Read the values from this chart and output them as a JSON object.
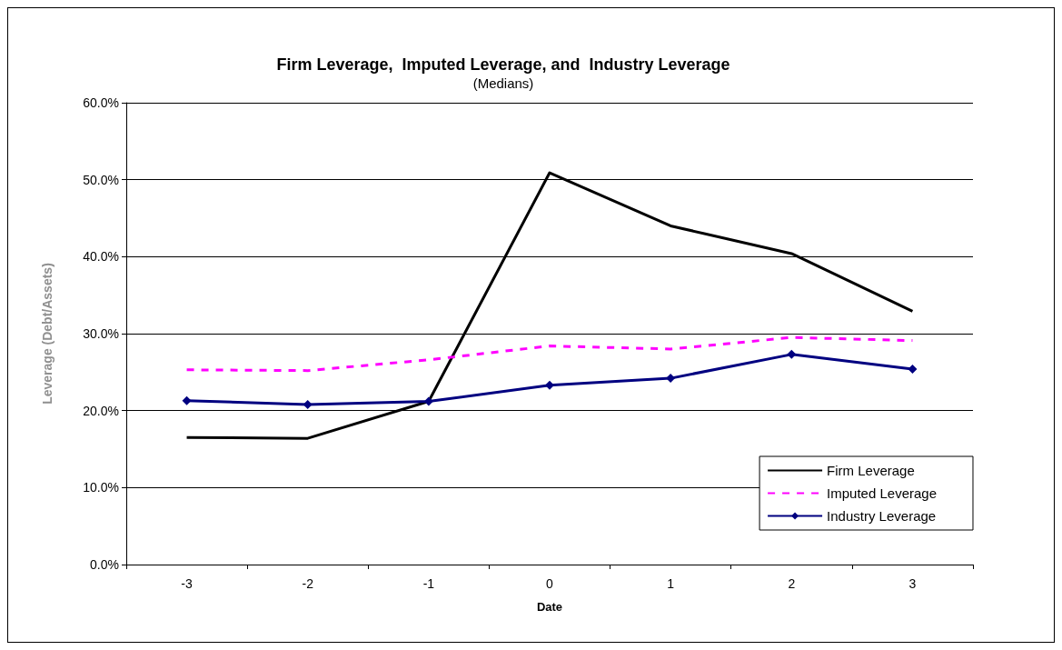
{
  "chart_data": {
    "type": "line",
    "title": "Firm Leverage,  Imputed Leverage, and  Industry Leverage",
    "subtitle": "(Medians)",
    "xlabel": "Date",
    "ylabel": "Leverage (Debt/Assets)",
    "categories": [
      "-3",
      "-2",
      "-1",
      "0",
      "1",
      "2",
      "3"
    ],
    "series": [
      {
        "name": "Firm Leverage",
        "color": "#000000",
        "marker": "none",
        "line_style": "solid",
        "values": [
          16.5,
          16.4,
          21.2,
          50.9,
          44.0,
          40.4,
          32.9
        ]
      },
      {
        "name": "Imputed Leverage",
        "color": "#ff00ff",
        "marker": "none",
        "line_style": "dashed",
        "values": [
          25.3,
          25.2,
          26.6,
          28.4,
          28.0,
          29.5,
          29.1
        ]
      },
      {
        "name": "Industry Leverage",
        "color": "#000080",
        "marker": "diamond",
        "line_style": "solid",
        "values": [
          21.3,
          20.8,
          21.2,
          23.3,
          24.2,
          27.3,
          25.4
        ]
      }
    ],
    "ylim": [
      0,
      60
    ],
    "yticks": [
      {
        "value": 0,
        "label": "0.0%"
      },
      {
        "value": 10,
        "label": "10.0%"
      },
      {
        "value": 20,
        "label": "20.0%"
      },
      {
        "value": 30,
        "label": "30.0%"
      },
      {
        "value": 40,
        "label": "40.0%"
      },
      {
        "value": 50,
        "label": "50.0%"
      },
      {
        "value": 60,
        "label": "60.0%"
      }
    ],
    "grid": "y",
    "legend": "bottom right"
  }
}
